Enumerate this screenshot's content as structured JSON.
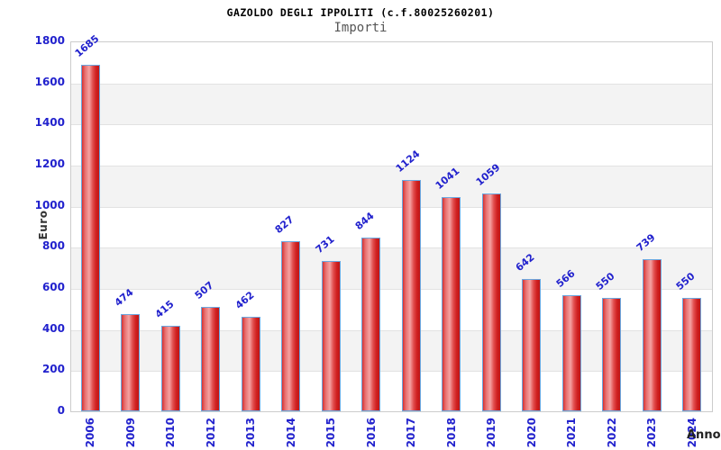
{
  "header": {
    "title": "GAZOLDO DEGLI IPPOLITI (c.f.80025260201)",
    "subtitle": "Importi"
  },
  "chart_data": {
    "type": "bar",
    "title": "GAZOLDO DEGLI IPPOLITI (c.f.80025260201)",
    "subtitle": "Importi",
    "xlabel": "Anno",
    "ylabel": "Euro",
    "categories": [
      "2006",
      "2009",
      "2010",
      "2012",
      "2013",
      "2014",
      "2015",
      "2016",
      "2017",
      "2018",
      "2019",
      "2020",
      "2021",
      "2022",
      "2023",
      "2024"
    ],
    "values": [
      1685,
      474,
      415,
      507,
      462,
      827,
      731,
      844,
      1124,
      1041,
      1059,
      642,
      566,
      550,
      739,
      550
    ],
    "ylim": [
      0,
      1800
    ],
    "ytick_step": 200,
    "grid": "horizontal-alternating-bands",
    "legend": "none",
    "colors": {
      "label_blue": "#2121cd",
      "bar_fill_main": "#d63232",
      "bar_fill_light": "#f4a2a2",
      "bar_border": "#6aa7e0",
      "band_gray": "#f3f3f3",
      "plot_border": "#cccccc",
      "subtitle_gray": "#555555",
      "axis_label_dark": "#222222"
    }
  }
}
